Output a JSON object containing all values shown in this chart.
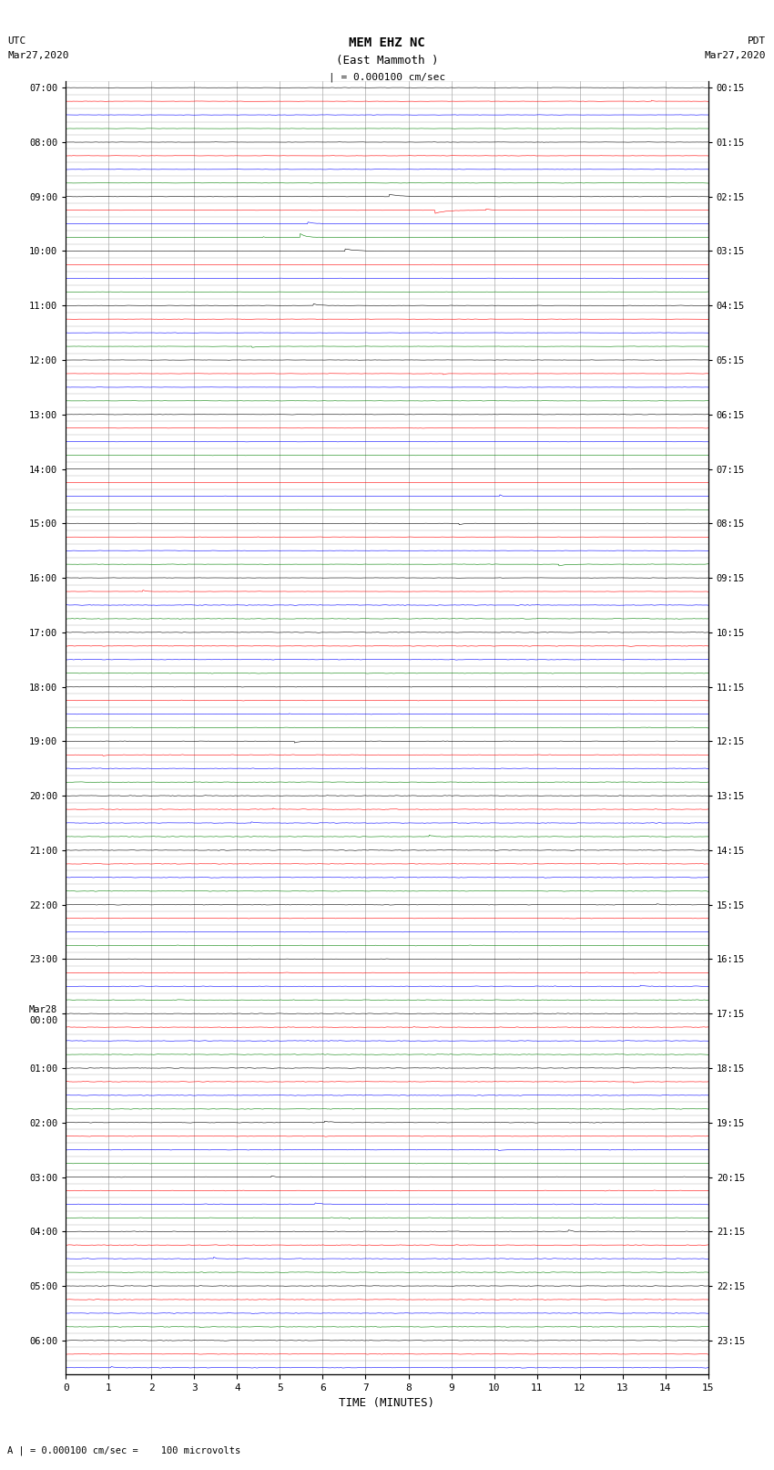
{
  "title_line1": "MEM EHZ NC",
  "title_line2": "(East Mammoth )",
  "title_line3": "| = 0.000100 cm/sec",
  "left_header": "UTC\nMar27,2020",
  "right_header": "PDT\nMar27,2020",
  "xlabel": "TIME (MINUTES)",
  "footer": "A | = 0.000100 cm/sec =    100 microvolts",
  "left_times": [
    "07:00",
    "",
    "",
    "",
    "08:00",
    "",
    "",
    "",
    "09:00",
    "",
    "",
    "",
    "10:00",
    "",
    "",
    "",
    "11:00",
    "",
    "",
    "",
    "12:00",
    "",
    "",
    "",
    "13:00",
    "",
    "",
    "",
    "14:00",
    "",
    "",
    "",
    "15:00",
    "",
    "",
    "",
    "16:00",
    "",
    "",
    "",
    "17:00",
    "",
    "",
    "",
    "18:00",
    "",
    "",
    "",
    "19:00",
    "",
    "",
    "",
    "20:00",
    "",
    "",
    "",
    "21:00",
    "",
    "",
    "",
    "22:00",
    "",
    "",
    "",
    "23:00",
    "",
    "",
    "",
    "Mar28\n00:00",
    "",
    "",
    "",
    "01:00",
    "",
    "",
    "",
    "02:00",
    "",
    "",
    "",
    "03:00",
    "",
    "",
    "",
    "04:00",
    "",
    "",
    "",
    "05:00",
    "",
    "",
    "",
    "06:00",
    "",
    ""
  ],
  "right_times": [
    "00:15",
    "",
    "",
    "",
    "01:15",
    "",
    "",
    "",
    "02:15",
    "",
    "",
    "",
    "03:15",
    "",
    "",
    "",
    "04:15",
    "",
    "",
    "",
    "05:15",
    "",
    "",
    "",
    "06:15",
    "",
    "",
    "",
    "07:15",
    "",
    "",
    "",
    "08:15",
    "",
    "",
    "",
    "09:15",
    "",
    "",
    "",
    "10:15",
    "",
    "",
    "",
    "11:15",
    "",
    "",
    "",
    "12:15",
    "",
    "",
    "",
    "13:15",
    "",
    "",
    "",
    "14:15",
    "",
    "",
    "",
    "15:15",
    "",
    "",
    "",
    "16:15",
    "",
    "",
    "",
    "17:15",
    "",
    "",
    "",
    "18:15",
    "",
    "",
    "",
    "19:15",
    "",
    "",
    "",
    "20:15",
    "",
    "",
    "",
    "21:15",
    "",
    "",
    "",
    "22:15",
    "",
    "",
    "",
    "23:15",
    "",
    ""
  ],
  "trace_colors": [
    "black",
    "red",
    "blue",
    "green"
  ],
  "num_rows": 95,
  "xmin": 0,
  "xmax": 15,
  "bg_color": "#ffffff",
  "grid_color": "#aaaaaa",
  "border_color": "#000000"
}
